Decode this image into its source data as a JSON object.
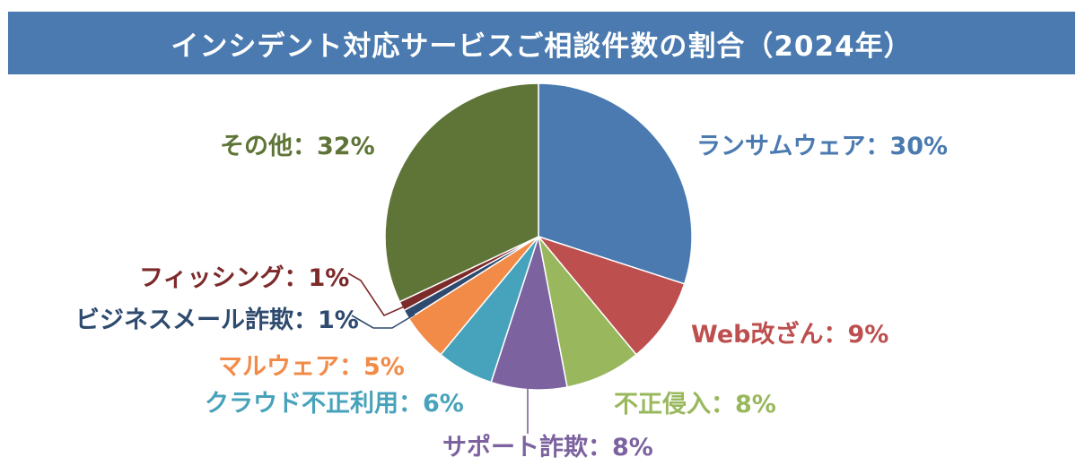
{
  "title": "インシデント対応サービスご相談件数の割合（2024年）",
  "colors": {
    "title_bg": "#4a7aaf",
    "title_text": "#ffffff"
  },
  "chart_data": {
    "type": "pie",
    "title": "インシデント対応サービスご相談件数の割合（2024年）",
    "start_angle_deg": 0,
    "direction": "clockwise",
    "slices": [
      {
        "name": "ランサムウェア",
        "value": 30,
        "label": "ランサムウェア：30%",
        "color": "#4a7aaf"
      },
      {
        "name": "Web改ざん",
        "value": 9,
        "label": "Web改ざん：9%",
        "color": "#bd4f4e"
      },
      {
        "name": "不正侵入",
        "value": 8,
        "label": "不正侵入：8%",
        "color": "#99b85d"
      },
      {
        "name": "サポート詐欺",
        "value": 8,
        "label": "サポート詐欺：8%",
        "color": "#7c629f"
      },
      {
        "name": "クラウド不正利用",
        "value": 6,
        "label": "クラウド不正利用：6%",
        "color": "#47a2bb"
      },
      {
        "name": "マルウェア",
        "value": 5,
        "label": "マルウェア：5%",
        "color": "#f28b48"
      },
      {
        "name": "ビジネスメール詐欺",
        "value": 1,
        "label": "ビジネスメール詐欺：1%",
        "color": "#2e4a6e"
      },
      {
        "name": "フィッシング",
        "value": 1,
        "label": "フィッシング：1%",
        "color": "#7d2a2a"
      },
      {
        "name": "その他",
        "value": 32,
        "label": "その他：32%",
        "color": "#5f7538"
      }
    ],
    "legend": "none",
    "data_labels": "outside"
  }
}
